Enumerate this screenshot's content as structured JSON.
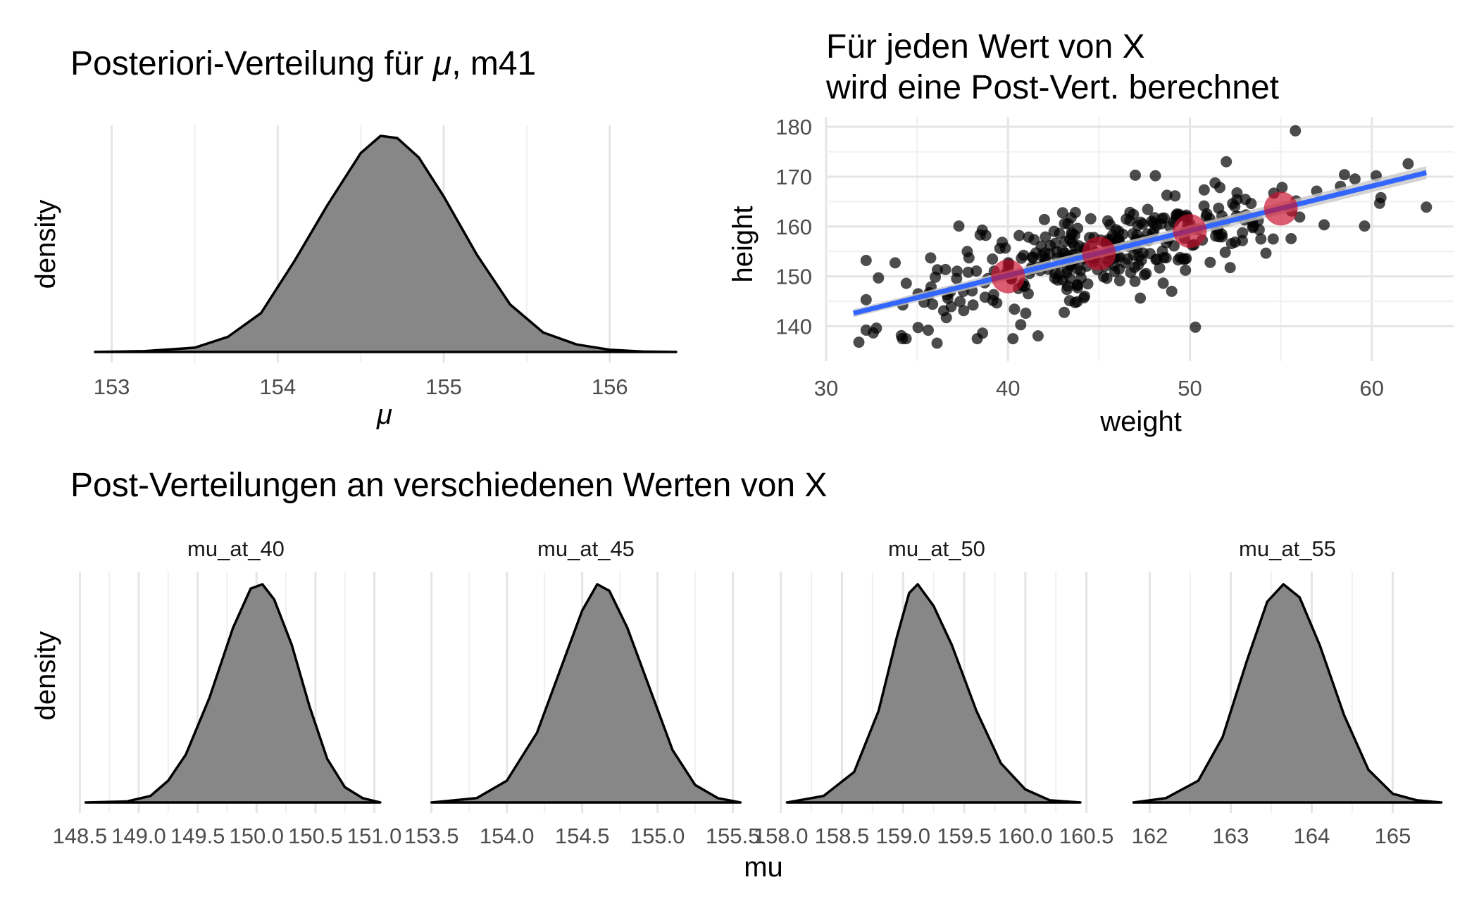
{
  "colors": {
    "density_fill": "#878787",
    "points": "#000000",
    "regression_line": "#3366ff",
    "ci_band": "#c8c8c8",
    "highlight": "#c8102e"
  },
  "chart_data": [
    {
      "type": "area",
      "title_parts": [
        "Posteriori-Verteilung für ",
        "μ",
        ", m41"
      ],
      "xlabel": "μ",
      "ylabel": "density",
      "xlim": [
        152.9,
        156.4
      ],
      "x_ticks": [
        153,
        154,
        155,
        156
      ],
      "grid": true,
      "y_ticks_shown": false,
      "density": {
        "x": [
          152.9,
          153.2,
          153.5,
          153.7,
          153.9,
          154.1,
          154.3,
          154.5,
          154.62,
          154.72,
          154.85,
          155.0,
          155.2,
          155.4,
          155.6,
          155.8,
          156.0,
          156.2,
          156.4
        ],
        "y": [
          0.0,
          0.004,
          0.02,
          0.07,
          0.18,
          0.42,
          0.68,
          0.92,
          1.0,
          0.99,
          0.9,
          0.72,
          0.45,
          0.22,
          0.09,
          0.035,
          0.01,
          0.002,
          0.0
        ]
      }
    },
    {
      "type": "scatter",
      "title_lines": [
        "Für jeden Wert von X",
        "wird eine Post-Vert. berechnet"
      ],
      "xlabel": "weight",
      "ylabel": "height",
      "xlim": [
        30,
        64.5
      ],
      "ylim": [
        133,
        182
      ],
      "x_ticks": [
        30,
        40,
        50,
        60
      ],
      "y_ticks": [
        140,
        150,
        160,
        170,
        180
      ],
      "grid": true,
      "regression_line": {
        "x": [
          31.5,
          63
        ],
        "y": [
          142.6,
          170.8
        ]
      },
      "highlighted_points": {
        "x": [
          40,
          45,
          50,
          55
        ],
        "y": [
          150.0,
          154.6,
          159.1,
          163.6
        ]
      },
      "outlier_points": {
        "x": [
          31.8,
          32.2,
          36.1,
          37.3,
          42.0,
          47.0,
          48.1,
          49.0,
          50.3,
          52.0,
          55.8,
          58.5,
          59.6,
          62.0,
          63.0,
          38.6,
          40.7
        ],
        "y": [
          136.8,
          153.2,
          136.6,
          160.1,
          161.4,
          170.3,
          170.2,
          147.0,
          139.8,
          173.0,
          179.2,
          170.4,
          160.1,
          172.6,
          163.9,
          138.6,
          140.3
        ]
      }
    },
    {
      "type": "area",
      "title": "Post-Verteilungen an verschiedenen Werten von X",
      "xlabel": "mu",
      "ylabel": "density",
      "grid": true,
      "panels": [
        {
          "strip": "mu_at_40",
          "xlim": [
            148.45,
            151.2
          ],
          "x_ticks": [
            148.5,
            149.0,
            149.5,
            150.0,
            150.5,
            151.0
          ],
          "x_tick_labels": [
            "148.5",
            "149.0",
            "149.5",
            "150.0",
            "150.5",
            "151.0"
          ],
          "density": {
            "x": [
              148.55,
              148.9,
              149.1,
              149.25,
              149.4,
              149.6,
              149.8,
              149.95,
              150.05,
              150.15,
              150.3,
              150.45,
              150.6,
              150.75,
              150.9,
              151.05
            ],
            "y": [
              0.0,
              0.005,
              0.03,
              0.1,
              0.22,
              0.48,
              0.8,
              0.98,
              1.0,
              0.93,
              0.72,
              0.44,
              0.2,
              0.07,
              0.02,
              0.0
            ]
          }
        },
        {
          "strip": "mu_at_45",
          "xlim": [
            153.45,
            155.6
          ],
          "x_ticks": [
            153.5,
            154.0,
            154.5,
            155.0,
            155.5
          ],
          "x_tick_labels": [
            "153.5",
            "154.0",
            "154.5",
            "155.0",
            "155.5"
          ],
          "density": {
            "x": [
              153.5,
              153.8,
              154.0,
              154.2,
              154.35,
              154.5,
              154.6,
              154.68,
              154.8,
              154.95,
              155.1,
              155.25,
              155.4,
              155.55
            ],
            "y": [
              0.0,
              0.02,
              0.1,
              0.32,
              0.6,
              0.88,
              1.0,
              0.97,
              0.8,
              0.52,
              0.24,
              0.08,
              0.02,
              0.0
            ]
          }
        },
        {
          "strip": "mu_at_50",
          "xlim": [
            157.95,
            160.6
          ],
          "x_ticks": [
            158.0,
            158.5,
            159.0,
            159.5,
            160.0,
            160.5
          ],
          "x_tick_labels": [
            "158.0",
            "158.5",
            "159.0",
            "159.5",
            "160.0",
            "160.5"
          ],
          "density": {
            "x": [
              158.05,
              158.35,
              158.6,
              158.8,
              158.95,
              159.05,
              159.12,
              159.25,
              159.4,
              159.6,
              159.8,
              160.0,
              160.2,
              160.45
            ],
            "y": [
              0.0,
              0.03,
              0.14,
              0.42,
              0.76,
              0.96,
              1.0,
              0.9,
              0.72,
              0.42,
              0.18,
              0.06,
              0.01,
              0.0
            ]
          }
        },
        {
          "strip": "mu_at_55",
          "xlim": [
            161.7,
            165.7
          ],
          "x_ticks": [
            162,
            163,
            164,
            165
          ],
          "x_tick_labels": [
            "162",
            "163",
            "164",
            "165"
          ],
          "density": {
            "x": [
              161.8,
              162.2,
              162.6,
              162.9,
              163.2,
              163.45,
              163.65,
              163.85,
              164.1,
              164.4,
              164.7,
              165.0,
              165.3,
              165.6
            ],
            "y": [
              0.0,
              0.02,
              0.1,
              0.3,
              0.65,
              0.92,
              1.0,
              0.94,
              0.72,
              0.4,
              0.15,
              0.04,
              0.01,
              0.0
            ]
          }
        }
      ]
    }
  ]
}
